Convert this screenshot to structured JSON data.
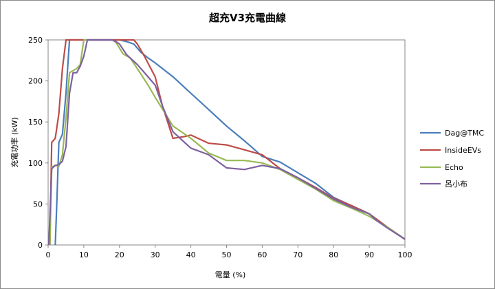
{
  "chart_data": {
    "type": "line",
    "title": "超充V3充電曲線",
    "xlabel": "電量 (%)",
    "ylabel": "充電功率 (kW)",
    "xlim": [
      0,
      100
    ],
    "ylim": [
      0,
      250
    ],
    "x_ticks": [
      0,
      10,
      20,
      30,
      40,
      50,
      60,
      70,
      80,
      90,
      100
    ],
    "y_ticks": [
      0,
      50,
      100,
      150,
      200,
      250
    ],
    "grid": true,
    "legend_position": "right",
    "series": [
      {
        "name": "Dag@TMC",
        "color": "#4a7ebb",
        "points": [
          [
            2,
            0
          ],
          [
            2.5,
            60
          ],
          [
            3,
            125
          ],
          [
            4,
            135
          ],
          [
            5,
            185
          ],
          [
            6,
            250
          ],
          [
            8,
            250
          ],
          [
            10,
            250
          ],
          [
            15,
            250
          ],
          [
            20,
            250
          ],
          [
            22,
            248
          ],
          [
            24,
            245
          ],
          [
            26,
            235
          ],
          [
            28,
            228
          ],
          [
            30,
            222
          ],
          [
            35,
            205
          ],
          [
            40,
            185
          ],
          [
            45,
            165
          ],
          [
            50,
            145
          ],
          [
            55,
            127
          ],
          [
            60,
            108
          ],
          [
            65,
            101
          ],
          [
            70,
            88
          ],
          [
            75,
            75
          ],
          [
            80,
            58
          ],
          [
            85,
            48
          ],
          [
            90,
            38
          ],
          [
            95,
            22
          ],
          [
            100,
            7
          ]
        ]
      },
      {
        "name": "InsideEVs",
        "color": "#be4b48",
        "points": [
          [
            0.5,
            0
          ],
          [
            1,
            125
          ],
          [
            2,
            130
          ],
          [
            3,
            160
          ],
          [
            4,
            215
          ],
          [
            5,
            250
          ],
          [
            6,
            250
          ],
          [
            10,
            250
          ],
          [
            15,
            250
          ],
          [
            20,
            250
          ],
          [
            24,
            250
          ],
          [
            25,
            245
          ],
          [
            27,
            230
          ],
          [
            30,
            205
          ],
          [
            32,
            170
          ],
          [
            35,
            130
          ],
          [
            38,
            132
          ],
          [
            40,
            134
          ],
          [
            45,
            124
          ],
          [
            50,
            122
          ],
          [
            55,
            116
          ],
          [
            60,
            110
          ],
          [
            65,
            93
          ],
          [
            70,
            82
          ],
          [
            75,
            70
          ],
          [
            80,
            57
          ],
          [
            85,
            48
          ],
          [
            90,
            38
          ],
          [
            95,
            22
          ],
          [
            100,
            7
          ]
        ]
      },
      {
        "name": "Echo",
        "color": "#98b954",
        "points": [
          [
            0.5,
            0
          ],
          [
            1,
            95
          ],
          [
            2,
            97
          ],
          [
            3,
            96
          ],
          [
            4,
            110
          ],
          [
            5,
            155
          ],
          [
            6,
            210
          ],
          [
            8,
            215
          ],
          [
            9,
            220
          ],
          [
            10,
            250
          ],
          [
            11,
            250
          ],
          [
            15,
            250
          ],
          [
            18,
            250
          ],
          [
            19,
            247
          ],
          [
            20,
            240
          ],
          [
            21,
            233
          ],
          [
            23,
            228
          ],
          [
            25,
            215
          ],
          [
            28,
            195
          ],
          [
            30,
            180
          ],
          [
            35,
            145
          ],
          [
            40,
            130
          ],
          [
            45,
            112
          ],
          [
            50,
            103
          ],
          [
            55,
            103
          ],
          [
            60,
            100
          ],
          [
            65,
            92
          ],
          [
            70,
            80
          ],
          [
            75,
            68
          ],
          [
            80,
            54
          ],
          [
            85,
            45
          ],
          [
            90,
            35
          ],
          [
            95,
            22
          ],
          [
            100,
            7
          ]
        ]
      },
      {
        "name": "呂小布",
        "color": "#7d60a0",
        "points": [
          [
            0.2,
            0
          ],
          [
            1,
            93
          ],
          [
            2,
            97
          ],
          [
            3,
            98
          ],
          [
            4,
            102
          ],
          [
            5,
            120
          ],
          [
            6,
            185
          ],
          [
            7,
            210
          ],
          [
            8,
            210
          ],
          [
            9,
            218
          ],
          [
            10,
            230
          ],
          [
            11,
            250
          ],
          [
            15,
            250
          ],
          [
            18,
            250
          ],
          [
            19,
            248
          ],
          [
            20,
            245
          ],
          [
            22,
            232
          ],
          [
            25,
            220
          ],
          [
            28,
            205
          ],
          [
            30,
            195
          ],
          [
            32,
            170
          ],
          [
            35,
            138
          ],
          [
            40,
            118
          ],
          [
            45,
            110
          ],
          [
            50,
            94
          ],
          [
            55,
            92
          ],
          [
            60,
            97
          ],
          [
            65,
            93
          ],
          [
            70,
            82
          ],
          [
            75,
            69
          ],
          [
            80,
            56
          ],
          [
            85,
            46
          ],
          [
            90,
            38
          ],
          [
            92,
            30
          ],
          [
            95,
            21
          ],
          [
            100,
            7
          ]
        ]
      }
    ]
  }
}
